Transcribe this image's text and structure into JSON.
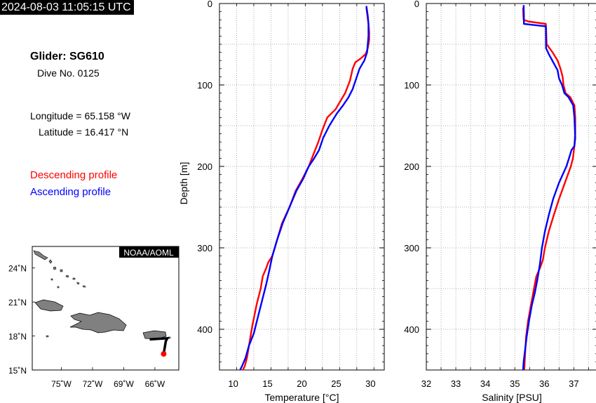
{
  "header": {
    "timestamp": "2024-08-03 11:05:15 UTC"
  },
  "info": {
    "glider": "Glider: SG610",
    "dive": "Dive No. 0125",
    "longitude": "Longitude = 65.158 °W",
    "latitude": "Latitude = 16.417 °N",
    "descending_label": "Descending profile",
    "ascending_label": "Ascending profile"
  },
  "colors": {
    "descending": "#ff0000",
    "ascending": "#0000ff",
    "land": "#808080"
  },
  "chart_data": [
    {
      "type": "line",
      "xlabel": "Temperature [°C]",
      "ylabel": "Depth [m]",
      "xlim": [
        8,
        32
      ],
      "ylim": [
        450,
        0
      ],
      "xticks": [
        10,
        15,
        20,
        25,
        30
      ],
      "yticks": [
        0,
        100,
        200,
        300,
        400
      ],
      "grid": true,
      "series": [
        {
          "name": "Descending profile",
          "color": "#ff0000",
          "x": [
            29.4,
            29.7,
            29.8,
            29.8,
            29.6,
            29.3,
            28.5,
            27.8,
            27.4,
            27.0,
            26.3,
            25.6,
            24.9,
            23.7,
            23.0,
            22.4,
            21.7,
            21.0,
            20.1,
            19.1,
            18.2,
            17.1,
            16.4,
            15.7,
            15.1,
            14.8,
            14.3,
            14.0,
            13.4,
            12.8,
            12.3,
            12.0,
            11.7,
            11.4
          ],
          "y": [
            5,
            25,
            35,
            45,
            55,
            62,
            68,
            72,
            80,
            95,
            110,
            120,
            130,
            140,
            155,
            170,
            185,
            200,
            215,
            230,
            250,
            270,
            290,
            310,
            318,
            325,
            335,
            350,
            370,
            395,
            420,
            435,
            445,
            450
          ]
        },
        {
          "name": "Ascending profile",
          "color": "#0000ff",
          "x": [
            29.4,
            29.6,
            29.7,
            29.7,
            29.5,
            29.1,
            28.4,
            27.8,
            27.4,
            26.8,
            26.0,
            25.1,
            24.0,
            23.1,
            22.5,
            21.8,
            21.0,
            20.2,
            19.2,
            18.2,
            17.2,
            16.4,
            15.7,
            15.2,
            14.8,
            14.2,
            13.6,
            13.0,
            12.3,
            11.8,
            11.3,
            11.0
          ],
          "y": [
            3,
            15,
            25,
            40,
            60,
            70,
            80,
            95,
            105,
            115,
            125,
            135,
            150,
            165,
            180,
            190,
            200,
            215,
            230,
            250,
            270,
            290,
            310,
            330,
            345,
            365,
            385,
            405,
            420,
            435,
            445,
            450
          ]
        }
      ]
    },
    {
      "type": "line",
      "xlabel": "Salinity [PSU]",
      "ylabel": "",
      "xlim": [
        32,
        37.8
      ],
      "ylim": [
        450,
        0
      ],
      "xticks": [
        32,
        33,
        34,
        35,
        36,
        37
      ],
      "yticks": [
        0,
        100,
        200,
        300,
        400
      ],
      "grid": true,
      "series": [
        {
          "name": "Descending profile",
          "color": "#ff0000",
          "x": [
            35.28,
            35.29,
            35.3,
            35.45,
            36.05,
            36.06,
            36.08,
            36.28,
            36.45,
            36.55,
            36.62,
            36.65,
            36.72,
            36.88,
            37.02,
            37.05,
            37.05,
            37.02,
            36.97,
            36.9,
            36.7,
            36.5,
            36.32,
            36.15,
            36.02,
            35.95,
            35.85,
            35.73,
            35.65,
            35.55,
            35.45,
            35.38,
            35.35,
            35.32
          ],
          "y": [
            5,
            15,
            20,
            22,
            25,
            30,
            50,
            60,
            70,
            80,
            90,
            100,
            110,
            115,
            125,
            140,
            160,
            175,
            190,
            200,
            220,
            240,
            260,
            280,
            300,
            315,
            325,
            335,
            350,
            370,
            390,
            410,
            430,
            450
          ]
        },
        {
          "name": "Ascending profile",
          "color": "#0000ff",
          "x": [
            35.3,
            35.31,
            35.31,
            36.05,
            36.06,
            36.15,
            36.3,
            36.45,
            36.5,
            36.6,
            36.68,
            36.82,
            36.98,
            37.02,
            37.04,
            37.05,
            37.02,
            36.92,
            36.88,
            36.75,
            36.5,
            36.3,
            36.15,
            36.02,
            35.92,
            35.85,
            35.76,
            35.68,
            35.58,
            35.48,
            35.4,
            35.35,
            35.3,
            35.28
          ],
          "y": [
            2,
            15,
            25,
            28,
            55,
            62,
            72,
            82,
            92,
            100,
            110,
            115,
            125,
            140,
            155,
            165,
            175,
            180,
            185,
            200,
            220,
            240,
            260,
            280,
            300,
            320,
            340,
            355,
            370,
            390,
            410,
            425,
            440,
            450
          ]
        }
      ]
    }
  ],
  "map": {
    "label": "NOAA/AOML",
    "lat_labels": [
      "24˚N",
      "21˚N",
      "18˚N",
      "15˚N"
    ],
    "lon_labels": [
      "75˚W",
      "72˚W",
      "69˚W",
      "66˚W"
    ],
    "track": [
      [
        -66.5,
        17.7
      ],
      [
        -64.8,
        17.8
      ],
      [
        -64.95,
        17.55
      ],
      [
        -65.158,
        16.417
      ]
    ],
    "position": [
      -65.158,
      16.417
    ]
  }
}
